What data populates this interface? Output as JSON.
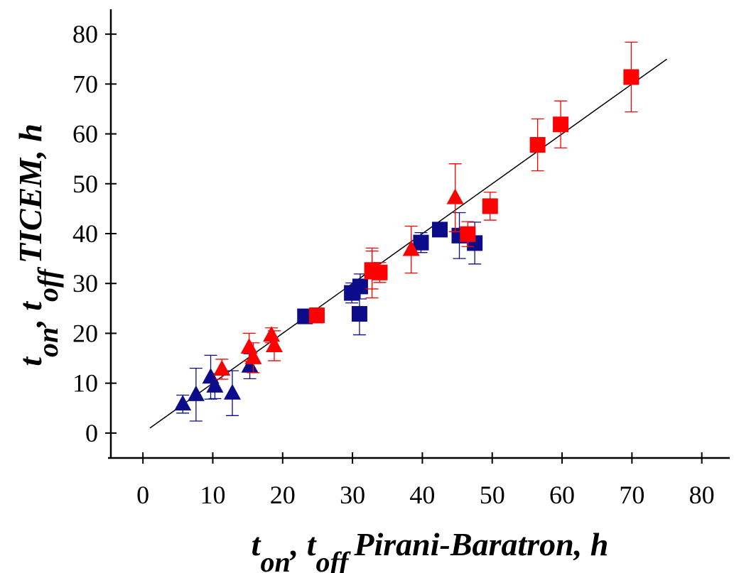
{
  "chart_data": {
    "type": "scatter",
    "xlabel": [
      "t",
      "on",
      ", t",
      "off",
      "Pirani-Baratron, h"
    ],
    "ylabel": [
      "t",
      "on",
      ", t",
      "off",
      "TICEM, h"
    ],
    "xlim": [
      -5,
      84
    ],
    "ylim": [
      -5,
      85
    ],
    "xticks": [
      0,
      10,
      20,
      30,
      40,
      50,
      60,
      70,
      80
    ],
    "yticks": [
      0,
      10,
      20,
      30,
      40,
      50,
      60,
      70,
      80
    ],
    "series": [
      {
        "marker": "triangle",
        "color": "#0c0c8a",
        "x": [
          5.7,
          7.6,
          9.7,
          10.3,
          12.8,
          15.3
        ],
        "values": [
          5.8,
          7.7,
          11.2,
          9.4,
          8,
          13.4
        ],
        "errors": [
          1.8,
          5.3,
          4.4,
          2.5,
          4.5,
          2.5
        ]
      },
      {
        "marker": "square",
        "color": "#0c0c8a",
        "x": [
          23.2,
          29.9,
          31.1,
          31,
          39.8,
          42.5,
          45.3,
          47.5
        ],
        "values": [
          23.4,
          28.1,
          29.4,
          23.9,
          38.2,
          40.8,
          39.6,
          38.1
        ],
        "errors": [
          1,
          2,
          2.5,
          4.2,
          2,
          1,
          4.6,
          4.2
        ]
      },
      {
        "marker": "triangle",
        "color": "#ff0000",
        "x": [
          11.3,
          15.2,
          15.8,
          18.4,
          18.8,
          32.8,
          38.4,
          44.7
        ],
        "values": [
          12.8,
          17.2,
          15.1,
          19.6,
          17.5,
          32.1,
          36.8,
          47.2
        ],
        "errors": [
          2,
          2.8,
          3,
          1.5,
          3,
          5,
          4.7,
          6.8
        ]
      },
      {
        "marker": "square",
        "color": "#ff0000",
        "x": [
          24.9,
          32.8,
          33.9,
          46.5,
          49.7,
          56.5,
          59.8,
          69.9
        ],
        "values": [
          23.6,
          32.7,
          32.2,
          39.9,
          45.5,
          57.8,
          61.9,
          71.4
        ],
        "errors": [
          1.5,
          3.8,
          2,
          2.5,
          2.8,
          5.2,
          4.7,
          7
        ]
      }
    ],
    "fit_line": {
      "color": "#000000",
      "x": [
        1,
        75
      ],
      "values": [
        1,
        75
      ]
    }
  }
}
